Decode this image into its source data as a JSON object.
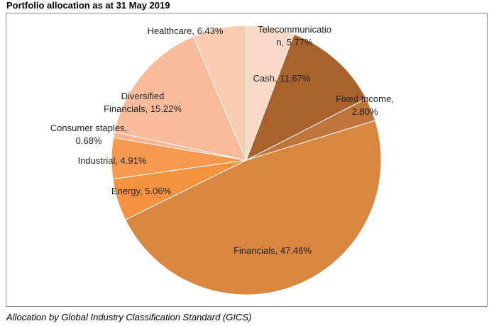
{
  "header": {
    "title": "Portfolio allocation as at 31 May 2019"
  },
  "footer": {
    "caption": "Allocation by Global Industry Classification Standard (GICS)"
  },
  "chart_data": {
    "type": "pie",
    "title": "Portfolio allocation as at 31 May 2019",
    "slices": [
      {
        "name": "Telecommunication",
        "value": 5.77,
        "color": "#fbd9c9",
        "label_lines": [
          "Telecommunicatio",
          "n, 5.77%"
        ]
      },
      {
        "name": "Cash",
        "value": 11.67,
        "color": "#a9622c",
        "label_lines": [
          "Cash, 11.67%"
        ]
      },
      {
        "name": "Fixed Income",
        "value": 2.8,
        "color": "#c0733a",
        "label_lines": [
          "Fixed Income,",
          "2.80%"
        ]
      },
      {
        "name": "Financials",
        "value": 47.46,
        "color": "#d98640",
        "label_lines": [
          "Financials, 47.46%"
        ]
      },
      {
        "name": "Energy",
        "value": 5.06,
        "color": "#f4923f",
        "label_lines": [
          "Energy, 5.06%"
        ]
      },
      {
        "name": "Industrial",
        "value": 4.91,
        "color": "#f59a4f",
        "label_lines": [
          "Industrial, 4.91%"
        ]
      },
      {
        "name": "Consumer staples",
        "value": 0.68,
        "color": "#f8b48a",
        "label_lines": [
          "Consumer staples,",
          "0.68%"
        ]
      },
      {
        "name": "Diversified Financials",
        "value": 15.22,
        "color": "#f9bc9b",
        "label_lines": [
          "Diversified",
          "Financials, 15.22%"
        ]
      },
      {
        "name": "Healthcare",
        "value": 6.43,
        "color": "#f9cbb3",
        "label_lines": [
          "Healthcare, 6.43%"
        ]
      }
    ]
  }
}
